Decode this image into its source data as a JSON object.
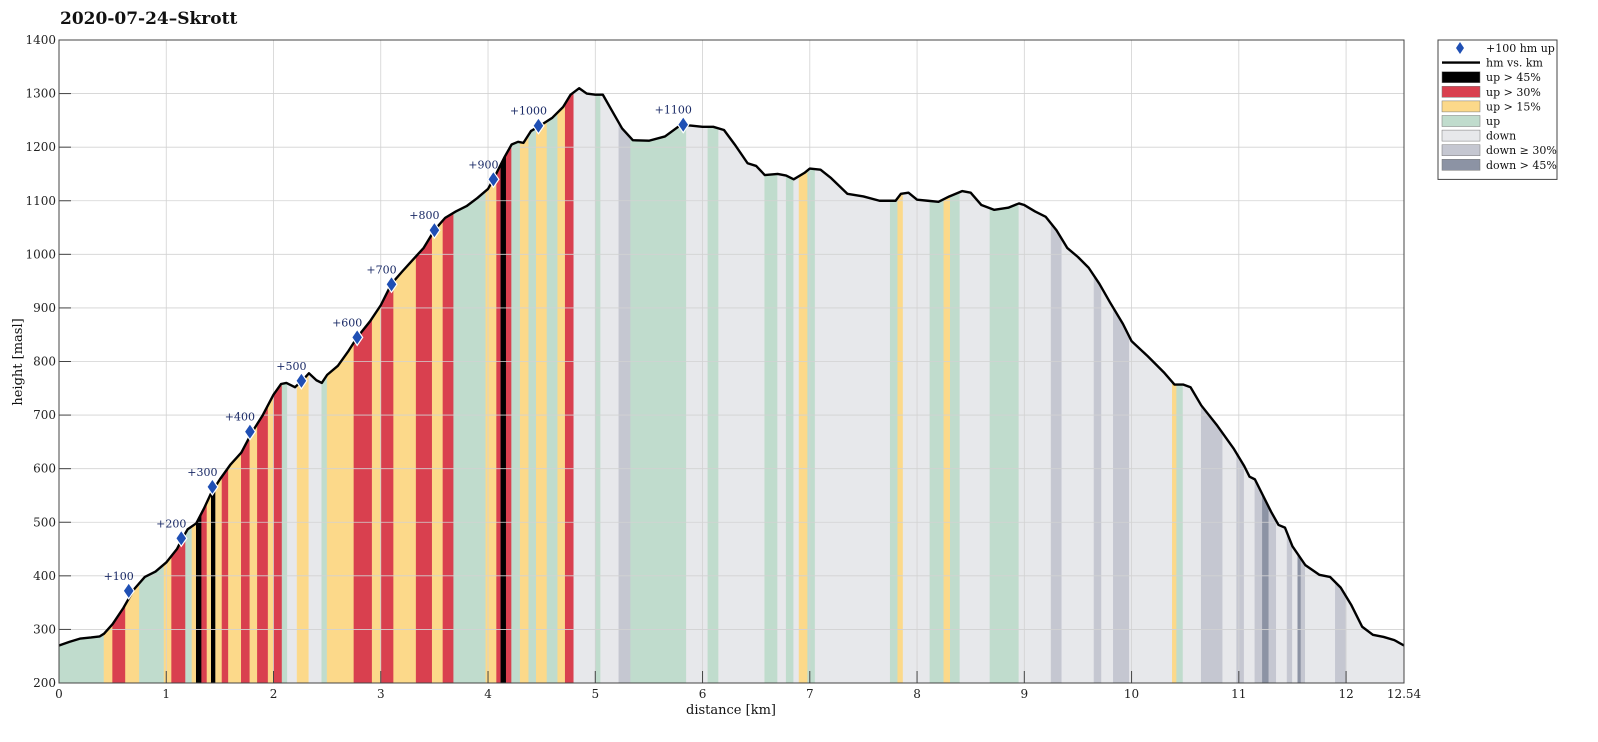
{
  "chart_data": {
    "type": "area",
    "title": "2020-07-24–Skrott",
    "xlabel": "distance [km]",
    "ylabel": "height [masl]",
    "xlim": [
      0,
      12.54
    ],
    "ylim": [
      200,
      1400
    ],
    "x_ticks": [
      0,
      1,
      2,
      3,
      4,
      5,
      6,
      7,
      8,
      9,
      10,
      11,
      12
    ],
    "x_tick_labels": [
      "0",
      "1",
      "2",
      "3",
      "4",
      "5",
      "6",
      "7",
      "8",
      "9",
      "10",
      "11",
      "12"
    ],
    "x_end_label": "12.54",
    "y_ticks": [
      200,
      300,
      400,
      500,
      600,
      700,
      800,
      900,
      1000,
      1100,
      1200,
      1300,
      1400
    ],
    "y_tick_labels": [
      "200",
      "300",
      "400",
      "500",
      "600",
      "700",
      "800",
      "900",
      "1000",
      "1100",
      "1200",
      "1300",
      "1400"
    ],
    "grid": true,
    "legend_position": "outside top-right",
    "colors": {
      "up45": "#000000",
      "up30": "#d9404f",
      "up15": "#fcd98a",
      "up": "#c0dccd",
      "down": "#e7e8eb",
      "down30": "#c5c7d1",
      "down45": "#8c93a4",
      "line": "#000000",
      "marker": "#1f4fb4"
    },
    "legend": [
      {
        "key": "marker",
        "label": "+100 hm up"
      },
      {
        "key": "line",
        "label": "hm vs. km"
      },
      {
        "key": "up45",
        "label": "up > 45%"
      },
      {
        "key": "up30",
        "label": "up > 30%"
      },
      {
        "key": "up15",
        "label": "up > 15%"
      },
      {
        "key": "up",
        "label": "up"
      },
      {
        "key": "down",
        "label": "down"
      },
      {
        "key": "down30",
        "label": "down ≥ 30%"
      },
      {
        "key": "down45",
        "label": "down > 45%"
      }
    ],
    "profile": [
      [
        0,
        270
      ],
      [
        0.1,
        277
      ],
      [
        0.2,
        283
      ],
      [
        0.3,
        285
      ],
      [
        0.38,
        287
      ],
      [
        0.42,
        292
      ],
      [
        0.5,
        310
      ],
      [
        0.6,
        340
      ],
      [
        0.7,
        375
      ],
      [
        0.8,
        398
      ],
      [
        0.9,
        408
      ],
      [
        1.0,
        425
      ],
      [
        1.1,
        450
      ],
      [
        1.15,
        470
      ],
      [
        1.2,
        487
      ],
      [
        1.28,
        498
      ],
      [
        1.35,
        525
      ],
      [
        1.42,
        555
      ],
      [
        1.5,
        580
      ],
      [
        1.6,
        608
      ],
      [
        1.7,
        630
      ],
      [
        1.8,
        668
      ],
      [
        1.9,
        700
      ],
      [
        2.0,
        738
      ],
      [
        2.07,
        758
      ],
      [
        2.12,
        760
      ],
      [
        2.2,
        752
      ],
      [
        2.27,
        765
      ],
      [
        2.33,
        778
      ],
      [
        2.4,
        765
      ],
      [
        2.45,
        760
      ],
      [
        2.5,
        775
      ],
      [
        2.6,
        792
      ],
      [
        2.7,
        820
      ],
      [
        2.78,
        845
      ],
      [
        2.9,
        875
      ],
      [
        3.0,
        905
      ],
      [
        3.1,
        945
      ],
      [
        3.2,
        968
      ],
      [
        3.3,
        990
      ],
      [
        3.4,
        1012
      ],
      [
        3.5,
        1045
      ],
      [
        3.6,
        1068
      ],
      [
        3.7,
        1080
      ],
      [
        3.8,
        1090
      ],
      [
        3.9,
        1105
      ],
      [
        4.0,
        1122
      ],
      [
        4.05,
        1140
      ],
      [
        4.15,
        1180
      ],
      [
        4.22,
        1205
      ],
      [
        4.28,
        1210
      ],
      [
        4.33,
        1208
      ],
      [
        4.4,
        1230
      ],
      [
        4.5,
        1242
      ],
      [
        4.6,
        1255
      ],
      [
        4.7,
        1275
      ],
      [
        4.77,
        1298
      ],
      [
        4.85,
        1310
      ],
      [
        4.92,
        1300
      ],
      [
        5.0,
        1298
      ],
      [
        5.07,
        1298
      ],
      [
        5.15,
        1270
      ],
      [
        5.25,
        1235
      ],
      [
        5.35,
        1213
      ],
      [
        5.5,
        1212
      ],
      [
        5.65,
        1220
      ],
      [
        5.8,
        1242
      ],
      [
        5.9,
        1240
      ],
      [
        6.0,
        1238
      ],
      [
        6.1,
        1238
      ],
      [
        6.2,
        1232
      ],
      [
        6.3,
        1205
      ],
      [
        6.42,
        1170
      ],
      [
        6.5,
        1165
      ],
      [
        6.58,
        1148
      ],
      [
        6.7,
        1150
      ],
      [
        6.78,
        1147
      ],
      [
        6.85,
        1140
      ],
      [
        6.95,
        1152
      ],
      [
        7.0,
        1160
      ],
      [
        7.1,
        1158
      ],
      [
        7.2,
        1142
      ],
      [
        7.35,
        1113
      ],
      [
        7.5,
        1108
      ],
      [
        7.65,
        1100
      ],
      [
        7.8,
        1100
      ],
      [
        7.85,
        1113
      ],
      [
        7.92,
        1115
      ],
      [
        8.0,
        1102
      ],
      [
        8.1,
        1100
      ],
      [
        8.2,
        1098
      ],
      [
        8.3,
        1108
      ],
      [
        8.42,
        1118
      ],
      [
        8.5,
        1115
      ],
      [
        8.6,
        1092
      ],
      [
        8.72,
        1083
      ],
      [
        8.85,
        1087
      ],
      [
        8.95,
        1095
      ],
      [
        9.0,
        1092
      ],
      [
        9.1,
        1080
      ],
      [
        9.2,
        1070
      ],
      [
        9.3,
        1045
      ],
      [
        9.4,
        1012
      ],
      [
        9.5,
        995
      ],
      [
        9.6,
        975
      ],
      [
        9.7,
        945
      ],
      [
        9.8,
        910
      ],
      [
        9.92,
        870
      ],
      [
        10.0,
        838
      ],
      [
        10.15,
        810
      ],
      [
        10.3,
        780
      ],
      [
        10.4,
        757
      ],
      [
        10.48,
        757
      ],
      [
        10.55,
        752
      ],
      [
        10.65,
        718
      ],
      [
        10.8,
        680
      ],
      [
        10.95,
        638
      ],
      [
        11.05,
        605
      ],
      [
        11.1,
        585
      ],
      [
        11.15,
        580
      ],
      [
        11.22,
        552
      ],
      [
        11.3,
        520
      ],
      [
        11.37,
        495
      ],
      [
        11.43,
        490
      ],
      [
        11.5,
        455
      ],
      [
        11.62,
        420
      ],
      [
        11.75,
        402
      ],
      [
        11.85,
        398
      ],
      [
        11.95,
        378
      ],
      [
        12.05,
        345
      ],
      [
        12.15,
        305
      ],
      [
        12.25,
        290
      ],
      [
        12.35,
        286
      ],
      [
        12.45,
        280
      ],
      [
        12.54,
        270
      ]
    ],
    "bands": [
      [
        0.0,
        0.42,
        "up"
      ],
      [
        0.42,
        0.5,
        "up15"
      ],
      [
        0.5,
        0.62,
        "up30"
      ],
      [
        0.62,
        0.75,
        "up15"
      ],
      [
        0.75,
        0.98,
        "up"
      ],
      [
        0.98,
        1.05,
        "up15"
      ],
      [
        1.05,
        1.18,
        "up30"
      ],
      [
        1.18,
        1.24,
        "up"
      ],
      [
        1.24,
        1.28,
        "up15"
      ],
      [
        1.28,
        1.33,
        "up45"
      ],
      [
        1.33,
        1.38,
        "up30"
      ],
      [
        1.38,
        1.42,
        "up15"
      ],
      [
        1.42,
        1.46,
        "up45"
      ],
      [
        1.46,
        1.52,
        "up15"
      ],
      [
        1.52,
        1.58,
        "up30"
      ],
      [
        1.58,
        1.7,
        "up15"
      ],
      [
        1.7,
        1.78,
        "up30"
      ],
      [
        1.78,
        1.85,
        "up15"
      ],
      [
        1.85,
        1.95,
        "up30"
      ],
      [
        1.95,
        2.0,
        "up15"
      ],
      [
        2.0,
        2.08,
        "up30"
      ],
      [
        2.08,
        2.13,
        "up"
      ],
      [
        2.13,
        2.22,
        "down"
      ],
      [
        2.22,
        2.33,
        "up15"
      ],
      [
        2.33,
        2.45,
        "down"
      ],
      [
        2.45,
        2.5,
        "up"
      ],
      [
        2.5,
        2.75,
        "up15"
      ],
      [
        2.75,
        2.92,
        "up30"
      ],
      [
        2.92,
        3.0,
        "up15"
      ],
      [
        3.0,
        3.12,
        "up30"
      ],
      [
        3.12,
        3.33,
        "up15"
      ],
      [
        3.33,
        3.48,
        "up30"
      ],
      [
        3.48,
        3.58,
        "up15"
      ],
      [
        3.58,
        3.68,
        "up30"
      ],
      [
        3.68,
        3.98,
        "up"
      ],
      [
        3.98,
        4.08,
        "up15"
      ],
      [
        4.08,
        4.12,
        "up30"
      ],
      [
        4.12,
        4.17,
        "up45"
      ],
      [
        4.17,
        4.22,
        "up30"
      ],
      [
        4.22,
        4.3,
        "up"
      ],
      [
        4.3,
        4.38,
        "up15"
      ],
      [
        4.38,
        4.45,
        "up"
      ],
      [
        4.45,
        4.55,
        "up15"
      ],
      [
        4.55,
        4.65,
        "up"
      ],
      [
        4.65,
        4.72,
        "up15"
      ],
      [
        4.72,
        4.8,
        "up30"
      ],
      [
        4.8,
        5.0,
        "down"
      ],
      [
        5.0,
        5.05,
        "up"
      ],
      [
        5.05,
        5.22,
        "down"
      ],
      [
        5.22,
        5.33,
        "down30"
      ],
      [
        5.33,
        5.85,
        "up"
      ],
      [
        5.85,
        6.05,
        "down"
      ],
      [
        6.05,
        6.15,
        "up"
      ],
      [
        6.15,
        6.58,
        "down"
      ],
      [
        6.58,
        6.7,
        "up"
      ],
      [
        6.7,
        6.78,
        "down"
      ],
      [
        6.78,
        6.85,
        "up"
      ],
      [
        6.85,
        6.9,
        "down"
      ],
      [
        6.9,
        6.98,
        "up15"
      ],
      [
        6.98,
        7.05,
        "up"
      ],
      [
        7.05,
        7.75,
        "down"
      ],
      [
        7.75,
        7.82,
        "up"
      ],
      [
        7.82,
        7.87,
        "up15"
      ],
      [
        7.87,
        8.12,
        "down"
      ],
      [
        8.12,
        8.25,
        "up"
      ],
      [
        8.25,
        8.31,
        "up15"
      ],
      [
        8.31,
        8.4,
        "up"
      ],
      [
        8.4,
        8.68,
        "down"
      ],
      [
        8.68,
        8.95,
        "up"
      ],
      [
        8.95,
        9.25,
        "down"
      ],
      [
        9.25,
        9.35,
        "down30"
      ],
      [
        9.35,
        9.65,
        "down"
      ],
      [
        9.65,
        9.72,
        "down30"
      ],
      [
        9.72,
        9.83,
        "down"
      ],
      [
        9.83,
        9.98,
        "down30"
      ],
      [
        9.98,
        10.38,
        "down"
      ],
      [
        10.38,
        10.42,
        "up15"
      ],
      [
        10.42,
        10.48,
        "up"
      ],
      [
        10.48,
        10.65,
        "down"
      ],
      [
        10.65,
        10.85,
        "down30"
      ],
      [
        10.85,
        10.98,
        "down"
      ],
      [
        10.98,
        11.05,
        "down30"
      ],
      [
        11.05,
        11.15,
        "down"
      ],
      [
        11.15,
        11.22,
        "down30"
      ],
      [
        11.22,
        11.28,
        "down45"
      ],
      [
        11.28,
        11.35,
        "down30"
      ],
      [
        11.35,
        11.45,
        "down"
      ],
      [
        11.45,
        11.5,
        "down30"
      ],
      [
        11.5,
        11.55,
        "down"
      ],
      [
        11.55,
        11.58,
        "down45"
      ],
      [
        11.58,
        11.62,
        "down30"
      ],
      [
        11.62,
        11.9,
        "down"
      ],
      [
        11.9,
        12.0,
        "down30"
      ],
      [
        12.0,
        12.54,
        "down"
      ]
    ],
    "markers": [
      {
        "x": 0.65,
        "y": 372,
        "label": "+100"
      },
      {
        "x": 1.14,
        "y": 470,
        "label": "+200"
      },
      {
        "x": 1.43,
        "y": 566,
        "label": "+300"
      },
      {
        "x": 1.78,
        "y": 669,
        "label": "+400"
      },
      {
        "x": 2.26,
        "y": 764,
        "label": "+500"
      },
      {
        "x": 2.78,
        "y": 845,
        "label": "+600"
      },
      {
        "x": 3.1,
        "y": 944,
        "label": "+700"
      },
      {
        "x": 3.5,
        "y": 1045,
        "label": "+800"
      },
      {
        "x": 4.05,
        "y": 1140,
        "label": "+900"
      },
      {
        "x": 4.47,
        "y": 1240,
        "label": "+1000"
      },
      {
        "x": 5.82,
        "y": 1242,
        "label": "+1100"
      }
    ]
  }
}
